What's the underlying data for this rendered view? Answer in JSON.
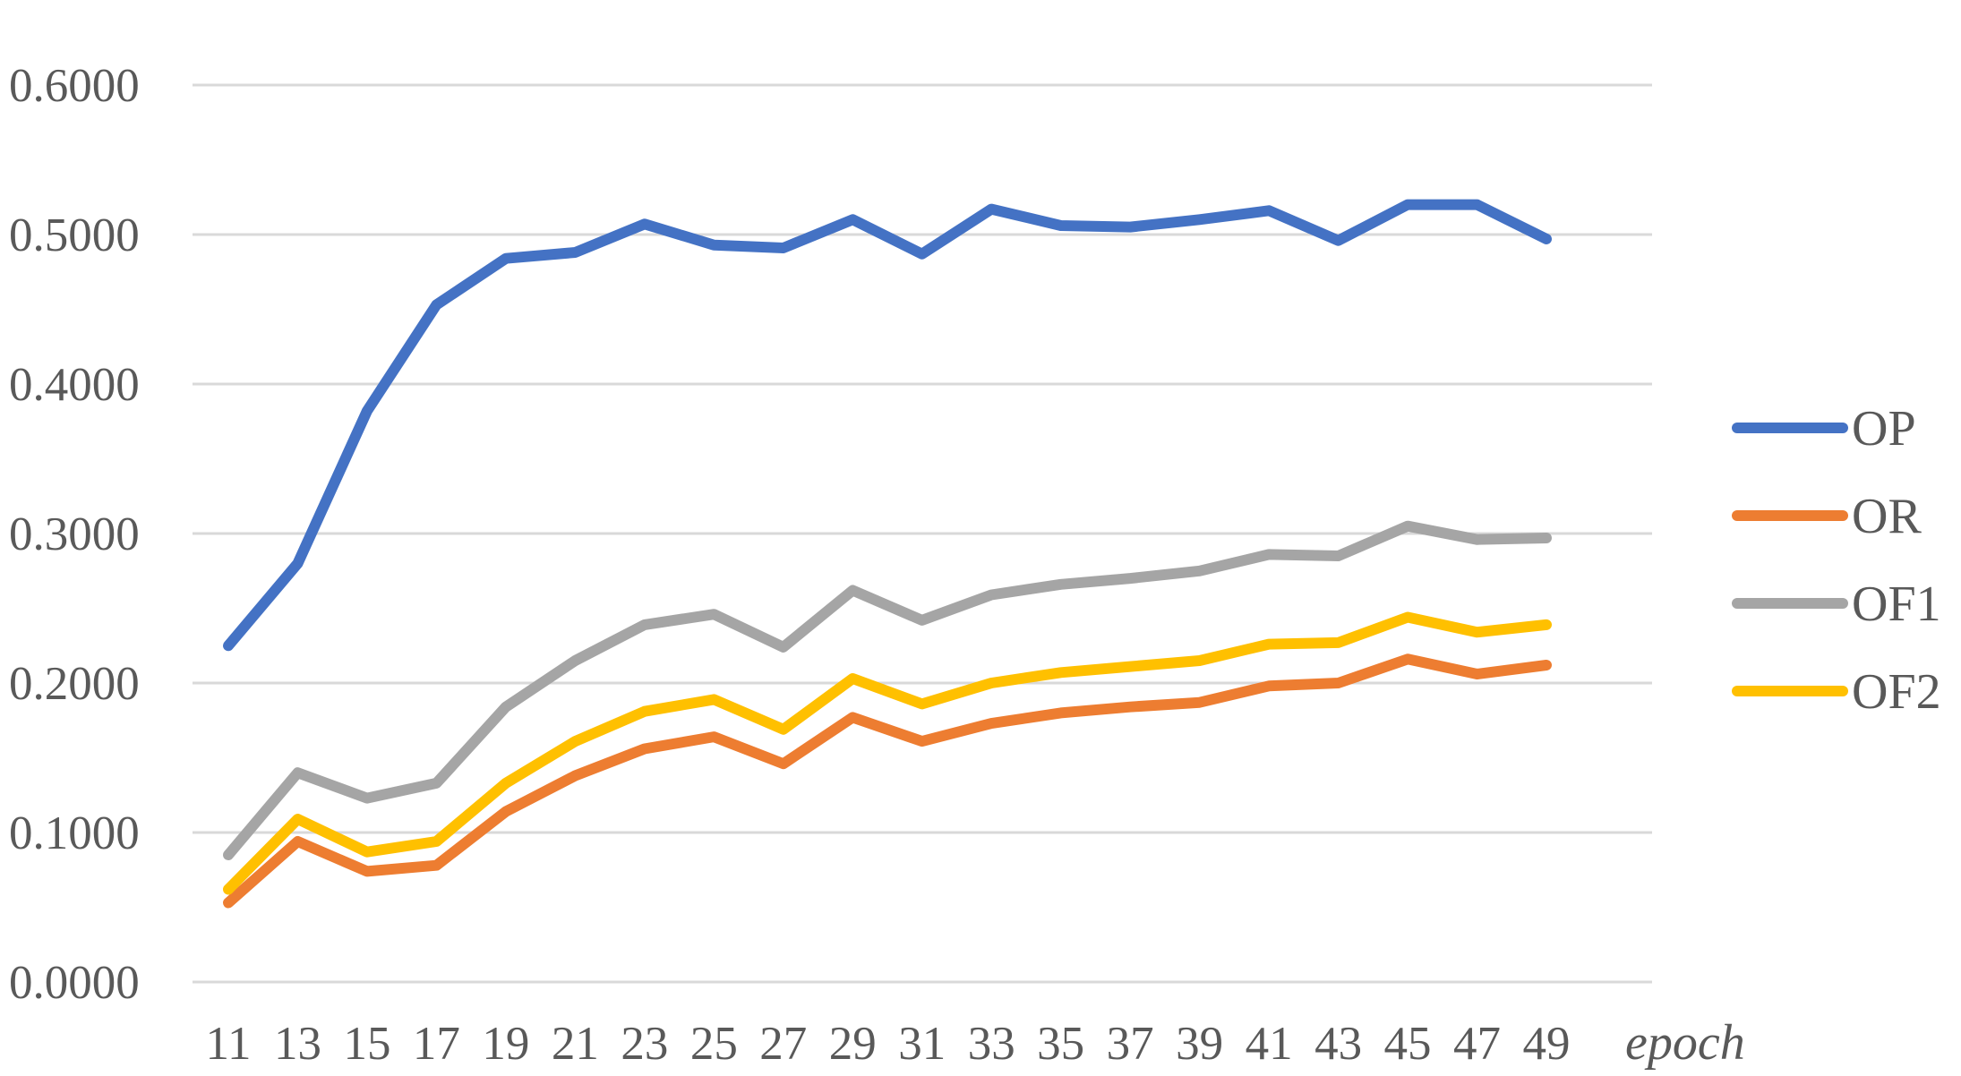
{
  "chart_data": {
    "type": "line",
    "xlabel": "epoch",
    "ylabel": "",
    "ylim": [
      0,
      0.6
    ],
    "yticks": [
      "0.0000",
      "0.1000",
      "0.2000",
      "0.3000",
      "0.4000",
      "0.5000",
      "0.6000"
    ],
    "categories": [
      "11",
      "13",
      "15",
      "17",
      "19",
      "21",
      "23",
      "25",
      "27",
      "29",
      "31",
      "33",
      "35",
      "37",
      "39",
      "41",
      "43",
      "45",
      "47",
      "49"
    ],
    "grid": true,
    "legend_position": "right",
    "series": [
      {
        "name": "OP",
        "color": "#4472C4",
        "values": [
          0.225,
          0.28,
          0.382,
          0.453,
          0.484,
          0.488,
          0.507,
          0.493,
          0.491,
          0.51,
          0.487,
          0.517,
          0.506,
          0.505,
          0.51,
          0.516,
          0.496,
          0.52,
          0.52,
          0.497
        ]
      },
      {
        "name": "OR",
        "color": "#ED7D31",
        "values": [
          0.053,
          0.094,
          0.074,
          0.078,
          0.114,
          0.138,
          0.156,
          0.164,
          0.146,
          0.177,
          0.161,
          0.173,
          0.18,
          0.184,
          0.187,
          0.198,
          0.2,
          0.216,
          0.206,
          0.212
        ]
      },
      {
        "name": "OF1",
        "color": "#A5A5A5",
        "values": [
          0.085,
          0.14,
          0.123,
          0.133,
          0.184,
          0.215,
          0.239,
          0.246,
          0.224,
          0.262,
          0.242,
          0.259,
          0.266,
          0.27,
          0.275,
          0.286,
          0.285,
          0.305,
          0.296,
          0.297
        ]
      },
      {
        "name": "OF2",
        "color": "#FFC000",
        "values": [
          0.062,
          0.109,
          0.087,
          0.094,
          0.133,
          0.161,
          0.181,
          0.189,
          0.169,
          0.203,
          0.186,
          0.2,
          0.207,
          0.211,
          0.215,
          0.226,
          0.227,
          0.244,
          0.234,
          0.239
        ]
      }
    ]
  }
}
